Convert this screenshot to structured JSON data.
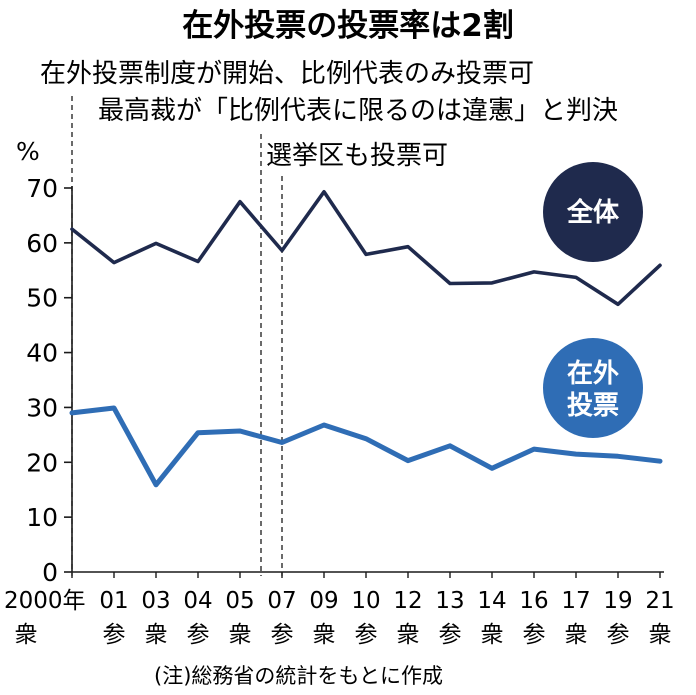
{
  "chart_data": {
    "type": "line",
    "title": "在外投票の投票率は2割",
    "ylabel": "%",
    "ylim": [
      0,
      70
    ],
    "yticks": [
      "0",
      "10",
      "20",
      "30",
      "40",
      "50",
      "60",
      "70"
    ],
    "categories": [
      {
        "year": "2000年",
        "kind": "衆"
      },
      {
        "year": "01",
        "kind": "参"
      },
      {
        "year": "03",
        "kind": "衆"
      },
      {
        "year": "04",
        "kind": "参"
      },
      {
        "year": "05",
        "kind": "衆"
      },
      {
        "year": "07",
        "kind": "参"
      },
      {
        "year": "09",
        "kind": "衆"
      },
      {
        "year": "10",
        "kind": "参"
      },
      {
        "year": "12",
        "kind": "衆"
      },
      {
        "year": "13",
        "kind": "参"
      },
      {
        "year": "14",
        "kind": "衆"
      },
      {
        "year": "16",
        "kind": "参"
      },
      {
        "year": "17",
        "kind": "衆"
      },
      {
        "year": "19",
        "kind": "参"
      },
      {
        "year": "21",
        "kind": "衆"
      }
    ],
    "series": [
      {
        "name": "全体",
        "color": "#1f2a4d",
        "values": [
          62.5,
          56.4,
          59.9,
          56.6,
          67.5,
          58.6,
          69.3,
          57.9,
          59.3,
          52.6,
          52.7,
          54.7,
          53.7,
          48.8,
          55.9
        ]
      },
      {
        "name": "在外投票",
        "label_lines": [
          "在外",
          "投票"
        ],
        "color": "#2f6db5",
        "values": [
          29.0,
          29.9,
          15.9,
          25.4,
          25.7,
          23.6,
          26.8,
          24.3,
          20.3,
          23.0,
          18.9,
          22.4,
          21.5,
          21.1,
          20.2
        ]
      }
    ],
    "annotations": [
      {
        "text": "在外投票制度が開始、比例代表のみ投票可",
        "category_index": 0
      },
      {
        "text": "最高裁が「比例代表に限るのは違憲」と判決",
        "category_index": 4.5
      },
      {
        "text": "選挙区も投票可",
        "category_index": 5
      }
    ],
    "note": "(注)総務省の統計をもとに作成"
  }
}
